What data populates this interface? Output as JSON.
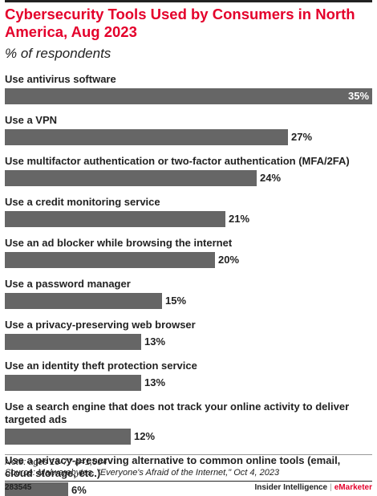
{
  "chart_data": {
    "type": "bar",
    "orientation": "horizontal",
    "title": "Cybersecurity Tools Used by Consumers in North America, Aug 2023",
    "subtitle": "% of respondents",
    "categories": [
      "Use antivirus software",
      "Use a VPN",
      "Use multifactor authentication or two-factor authentication (MFA/2FA)",
      "Use a credit monitoring service",
      "Use an ad blocker while browsing the internet",
      "Use a password manager",
      "Use a privacy-preserving web browser",
      "Use an identity theft protection service",
      "Use a search engine that does not track your online activity to deliver targeted ads",
      "Use a privacy-preserving alternative to common online tools (email, cloud storage, etc.)"
    ],
    "values": [
      35,
      27,
      24,
      21,
      20,
      15,
      13,
      13,
      12,
      6
    ],
    "value_labels": [
      "35%",
      "27%",
      "24%",
      "21%",
      "20%",
      "15%",
      "13%",
      "13%",
      "12%",
      "6%"
    ],
    "xlim": [
      0,
      35
    ],
    "bar_color": "#666666",
    "grid": false,
    "legend": "none"
  },
  "footer": {
    "note": "Note: ages 13-77 n=1,004",
    "source": "Source: Malwarebytes, \"Everyone's Afraid of the Internet,\" Oct 4, 2023",
    "chart_id": "283545",
    "brand_left": "Insider Intelligence",
    "brand_sep": "|",
    "brand_right": "eMarketer"
  },
  "colors": {
    "title": "#e4002b",
    "text": "#222222",
    "bar": "#666666",
    "brand_accent": "#e4002b"
  }
}
